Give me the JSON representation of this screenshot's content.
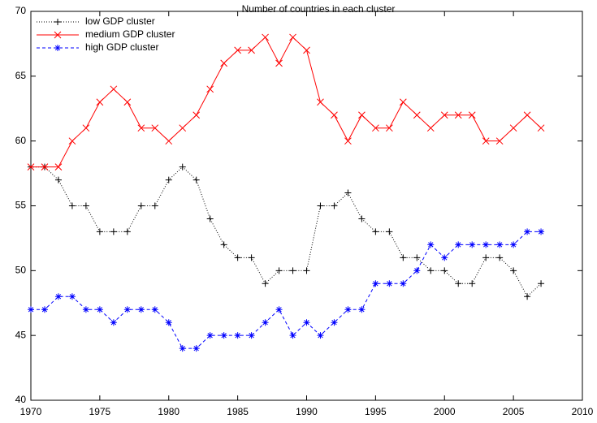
{
  "chart_data": {
    "type": "line",
    "title": "Number of countries in each cluster",
    "x": [
      1970,
      1971,
      1972,
      1973,
      1974,
      1975,
      1976,
      1977,
      1978,
      1979,
      1980,
      1981,
      1982,
      1983,
      1984,
      1985,
      1986,
      1987,
      1988,
      1989,
      1990,
      1991,
      1992,
      1993,
      1994,
      1995,
      1996,
      1997,
      1998,
      1999,
      2000,
      2001,
      2002,
      2003,
      2004,
      2005,
      2006,
      2007
    ],
    "series": [
      {
        "name": "low GDP cluster",
        "color": "#000000",
        "linestyle": "dotted",
        "marker": "plus",
        "values": [
          58,
          58,
          57,
          55,
          55,
          53,
          53,
          53,
          55,
          55,
          57,
          58,
          57,
          54,
          52,
          51,
          51,
          49,
          50,
          50,
          50,
          55,
          55,
          56,
          54,
          53,
          53,
          51,
          51,
          50,
          50,
          49,
          49,
          51,
          51,
          50,
          48,
          49
        ]
      },
      {
        "name": "medium GDP cluster",
        "color": "#ff0000",
        "linestyle": "solid",
        "marker": "cross",
        "values": [
          58,
          58,
          58,
          60,
          61,
          63,
          64,
          63,
          61,
          61,
          60,
          61,
          62,
          64,
          66,
          67,
          67,
          68,
          66,
          68,
          67,
          63,
          62,
          60,
          62,
          61,
          61,
          63,
          62,
          61,
          62,
          62,
          62,
          60,
          60,
          61,
          62,
          61
        ]
      },
      {
        "name": "high GDP cluster",
        "color": "#0000ff",
        "linestyle": "dashed",
        "marker": "star",
        "values": [
          47,
          47,
          48,
          48,
          47,
          47,
          46,
          47,
          47,
          47,
          46,
          44,
          44,
          45,
          45,
          45,
          45,
          46,
          47,
          45,
          46,
          45,
          46,
          47,
          47,
          49,
          49,
          49,
          50,
          52,
          51,
          52,
          52,
          52,
          52,
          52,
          53,
          53
        ]
      }
    ],
    "xlim": [
      1970,
      2010
    ],
    "xticks": [
      1970,
      1975,
      1980,
      1985,
      1990,
      1995,
      2000,
      2005,
      2010
    ],
    "ylim": [
      40,
      70
    ],
    "yticks": [
      40,
      45,
      50,
      55,
      60,
      65,
      70
    ],
    "grid": false,
    "legend": "top-left"
  }
}
